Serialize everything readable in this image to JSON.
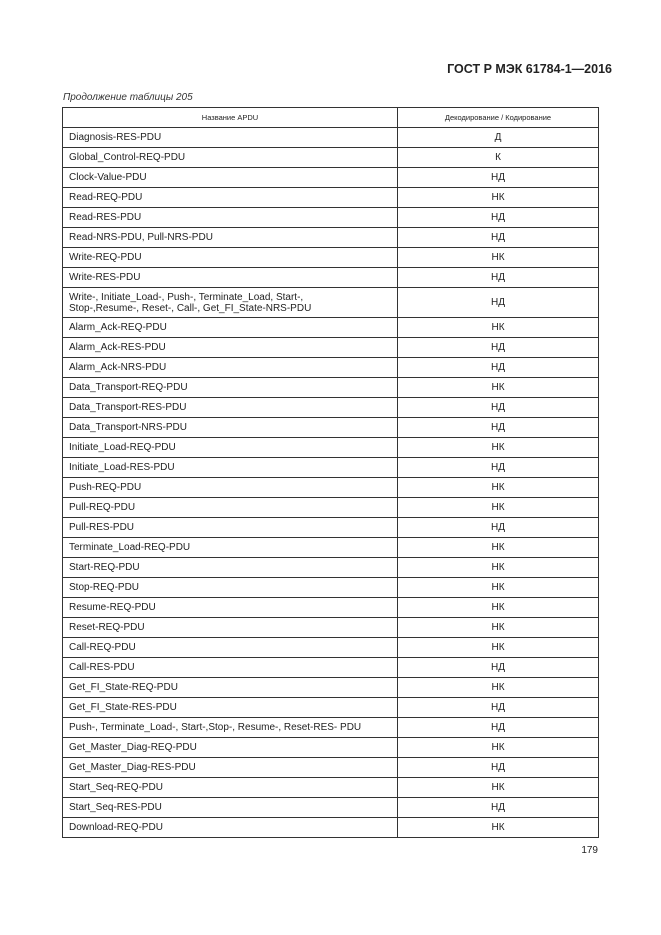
{
  "header": {
    "standard": "ГОСТ Р МЭК 61784-1—2016"
  },
  "caption": "Продолжение таблицы 205",
  "table": {
    "columns": [
      "Название APDU",
      "Декодирование / Кодирование"
    ],
    "rows": [
      [
        "Diagnosis-RES-PDU",
        "Д"
      ],
      [
        "Global_Control-REQ-PDU",
        "К"
      ],
      [
        "Clock-Value-PDU",
        "НД"
      ],
      [
        "Read-REQ-PDU",
        "НК"
      ],
      [
        "Read-RES-PDU",
        "НД"
      ],
      [
        "Read-NRS-PDU, Pull-NRS-PDU",
        "НД"
      ],
      [
        "Write-REQ-PDU",
        "НК"
      ],
      [
        "Write-RES-PDU",
        "НД"
      ],
      [
        "Write-, Initiate_Load-, Push-, Terminate_Load, Start-,\nStop-,Resume-, Reset-, Call-, Get_FI_State-NRS-PDU",
        "НД"
      ],
      [
        "Alarm_Ack-REQ-PDU",
        "НК"
      ],
      [
        "Alarm_Ack-RES-PDU",
        "НД"
      ],
      [
        "Alarm_Ack-NRS-PDU",
        "НД"
      ],
      [
        "Data_Transport-REQ-PDU",
        "НК"
      ],
      [
        "Data_Transport-RES-PDU",
        "НД"
      ],
      [
        "Data_Transport-NRS-PDU",
        "НД"
      ],
      [
        "Initiate_Load-REQ-PDU",
        "НК"
      ],
      [
        "Initiate_Load-RES-PDU",
        "НД"
      ],
      [
        "Push-REQ-PDU",
        "НК"
      ],
      [
        "Pull-REQ-PDU",
        "НК"
      ],
      [
        "Pull-RES-PDU",
        "НД"
      ],
      [
        "Terminate_Load-REQ-PDU",
        "НК"
      ],
      [
        "Start-REQ-PDU",
        "НК"
      ],
      [
        "Stop-REQ-PDU",
        "НК"
      ],
      [
        "Resume-REQ-PDU",
        "НК"
      ],
      [
        "Reset-REQ-PDU",
        "НК"
      ],
      [
        "Call-REQ-PDU",
        "НК"
      ],
      [
        "Call-RES-PDU",
        "НД"
      ],
      [
        "Get_FI_State-REQ-PDU",
        "НК"
      ],
      [
        "Get_FI_State-RES-PDU",
        "НД"
      ],
      [
        "Push-, Terminate_Load-, Start-,Stop-, Resume-, Reset-RES- PDU",
        "НД"
      ],
      [
        "Get_Master_Diag-REQ-PDU",
        "НК"
      ],
      [
        "Get_Master_Diag-RES-PDU",
        "НД"
      ],
      [
        "Start_Seq-REQ-PDU",
        "НК"
      ],
      [
        "Start_Seq-RES-PDU",
        "НД"
      ],
      [
        "Download-REQ-PDU",
        "НК"
      ]
    ]
  },
  "page_number": "179"
}
